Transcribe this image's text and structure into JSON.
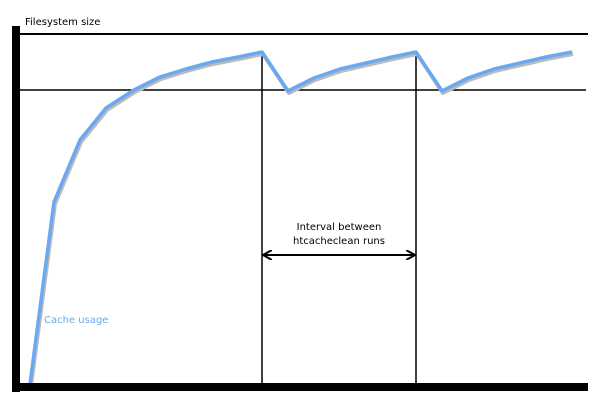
{
  "y_axis_label": "Filesystem size",
  "curve_label": "Cache usage",
  "interval_label_line1": "Interval between",
  "interval_label_line2": "htcacheclean runs",
  "colors": {
    "curve": "#6aa8f0",
    "axes": "#000000",
    "label": "#6aa8f0"
  }
}
